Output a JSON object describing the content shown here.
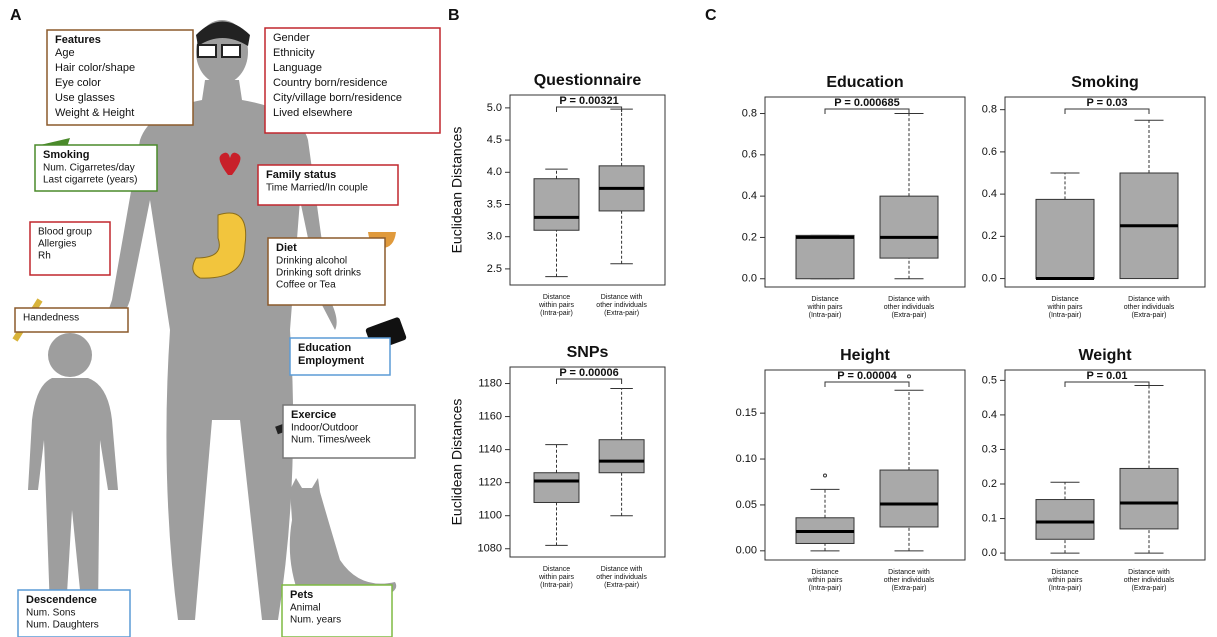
{
  "panels": [
    "A",
    "B",
    "C"
  ],
  "panel_a": [
    {
      "title": "Features",
      "lines": [
        "Age",
        "Hair color/shape",
        "Eye color",
        "Use glasses",
        "Weight & Height"
      ],
      "color": "#8b5a2b"
    },
    {
      "lines": [
        "Gender",
        "Ethnicity",
        "Language",
        "Country born/residence",
        "City/village born/residence",
        "Lived elsewhere"
      ],
      "color": "#c0272d"
    },
    {
      "title": "Smoking",
      "lines": [
        "Num. Cigarretes/day",
        "Last cigarrete (years)"
      ],
      "color": "#4a8a2a"
    },
    {
      "title": "Family status",
      "lines": [
        "Time Married/In couple"
      ],
      "color": "#c0272d"
    },
    {
      "lines": [
        "Blood group",
        "Allergies",
        "Rh"
      ],
      "color": "#c0272d"
    },
    {
      "title": "Diet",
      "lines": [
        "Drinking alcohol",
        "Drinking soft drinks",
        "Coffee or Tea"
      ],
      "color": "#8b5a2b"
    },
    {
      "lines": [
        "Handedness"
      ],
      "color": "#8b5a2b"
    },
    {
      "title": "Education",
      "lines": [
        "Employment"
      ],
      "color": "#5b9bd5"
    },
    {
      "title": "Exercice",
      "lines": [
        "Indoor/Outdoor",
        "Num. Times/week"
      ],
      "color": "#777777"
    },
    {
      "title": "Descendence",
      "lines": [
        "Num. Sons",
        "Num. Daughters"
      ],
      "color": "#5b9bd5"
    },
    {
      "title": "Pets",
      "lines": [
        "Animal",
        "Num. years"
      ],
      "color": "#7fba42"
    }
  ],
  "chart_data": [
    {
      "type": "box",
      "title": "Questionnaire",
      "ylabel": "Euclidean Distances",
      "annotation": "P = 0.00321",
      "color": "#a9a9a9",
      "categories": [
        [
          "Distance",
          "within pairs",
          "(Intra-pair)"
        ],
        [
          "Distance with",
          "other individuals",
          "(Extra-pair)"
        ]
      ],
      "boxes": [
        {
          "whisker_low": 2.38,
          "q1": 3.1,
          "median": 3.3,
          "q3": 3.9,
          "whisker_high": 4.05,
          "outliers": []
        },
        {
          "whisker_low": 2.58,
          "q1": 3.4,
          "median": 3.75,
          "q3": 4.1,
          "whisker_high": 4.98,
          "outliers": []
        }
      ],
      "ylim": [
        2.25,
        5.2
      ],
      "yticks": [
        2.5,
        {
          "value": 3,
          "label": "3.0"
        },
        3.5,
        {
          "value": 4,
          "label": "4.0"
        },
        4.5,
        {
          "value": 5,
          "label": "5.0"
        }
      ]
    },
    {
      "type": "box",
      "title": "SNPs",
      "ylabel": "Euclidean Distances",
      "annotation": "P = 0.00006",
      "color": "#a9a9a9",
      "categories": [
        [
          "Distance",
          "within pairs",
          "(Intra-pair)"
        ],
        [
          "Distance with",
          "other individuals",
          "(Extra-pair)"
        ]
      ],
      "boxes": [
        {
          "whisker_low": 1082,
          "q1": 1108,
          "median": 1121,
          "q3": 1126,
          "whisker_high": 1143,
          "outliers": []
        },
        {
          "whisker_low": 1100,
          "q1": 1126,
          "median": 1133,
          "q3": 1146,
          "whisker_high": 1177,
          "outliers": []
        }
      ],
      "ylim": [
        1075,
        1190
      ],
      "yticks": [
        1080,
        1100,
        1120,
        1140,
        1160,
        1180
      ]
    },
    {
      "type": "box",
      "title": "Education",
      "annotation": "P = 0.000685",
      "color": "#a9a9a9",
      "categories": [
        [
          "Distance",
          "within pairs",
          "(Intra-pair)"
        ],
        [
          "Distance with",
          "other individuals",
          "(Extra-pair)"
        ]
      ],
      "boxes": [
        {
          "whisker_low": 0,
          "q1": 0,
          "median": 0.2,
          "q3": 0.21,
          "whisker_high": 0.21,
          "outliers": []
        },
        {
          "whisker_low": 0,
          "q1": 0.1,
          "median": 0.2,
          "q3": 0.4,
          "whisker_high": 0.8,
          "outliers": []
        }
      ],
      "ylim": [
        -0.04,
        0.88
      ],
      "yticks": [
        {
          "value": 0,
          "label": "0.0"
        },
        0.2,
        0.4,
        0.6,
        0.8
      ]
    },
    {
      "type": "box",
      "title": "Smoking",
      "annotation": "P = 0.03",
      "color": "#a9a9a9",
      "categories": [
        [
          "Distance",
          "within pairs",
          "(Intra-pair)"
        ],
        [
          "Distance with",
          "other individuals",
          "(Extra-pair)"
        ]
      ],
      "boxes": [
        {
          "whisker_low": 0,
          "q1": 0,
          "median": 0,
          "q3": 0.375,
          "whisker_high": 0.5,
          "outliers": []
        },
        {
          "whisker_low": 0,
          "q1": 0,
          "median": 0.25,
          "q3": 0.5,
          "whisker_high": 0.75,
          "outliers": []
        }
      ],
      "ylim": [
        -0.04,
        0.86
      ],
      "yticks": [
        {
          "value": 0,
          "label": "0.0"
        },
        0.2,
        0.4,
        0.6,
        0.8
      ]
    },
    {
      "type": "box",
      "title": "Height",
      "annotation": "P = 0.00004",
      "color": "#a9a9a9",
      "categories": [
        [
          "Distance",
          "within pairs",
          "(Intra-pair)"
        ],
        [
          "Distance with",
          "other individuals",
          "(Extra-pair)"
        ]
      ],
      "boxes": [
        {
          "whisker_low": 0,
          "q1": 0.008,
          "median": 0.021,
          "q3": 0.036,
          "whisker_high": 0.067,
          "outliers": [
            0.082
          ]
        },
        {
          "whisker_low": 0,
          "q1": 0.026,
          "median": 0.051,
          "q3": 0.088,
          "whisker_high": 0.175,
          "outliers": [
            0.19
          ]
        }
      ],
      "ylim": [
        -0.01,
        0.197
      ],
      "yticks": [
        {
          "value": 0,
          "label": "0.00"
        },
        {
          "value": 0.05,
          "label": "0.05"
        },
        {
          "value": 0.1,
          "label": "0.10"
        },
        {
          "value": 0.15,
          "label": "0.15"
        }
      ]
    },
    {
      "type": "box",
      "title": "Weight",
      "annotation": "P = 0.01",
      "color": "#a9a9a9",
      "categories": [
        [
          "Distance",
          "within pairs",
          "(Intra-pair)"
        ],
        [
          "Distance with",
          "other individuals",
          "(Extra-pair)"
        ]
      ],
      "boxes": [
        {
          "whisker_low": 0,
          "q1": 0.04,
          "median": 0.09,
          "q3": 0.155,
          "whisker_high": 0.205,
          "outliers": []
        },
        {
          "whisker_low": 0,
          "q1": 0.07,
          "median": 0.145,
          "q3": 0.245,
          "whisker_high": 0.485,
          "outliers": []
        }
      ],
      "ylim": [
        -0.02,
        0.53
      ],
      "yticks": [
        {
          "value": 0,
          "label": "0.0"
        },
        0.1,
        0.2,
        0.3,
        0.4,
        0.5
      ]
    }
  ]
}
